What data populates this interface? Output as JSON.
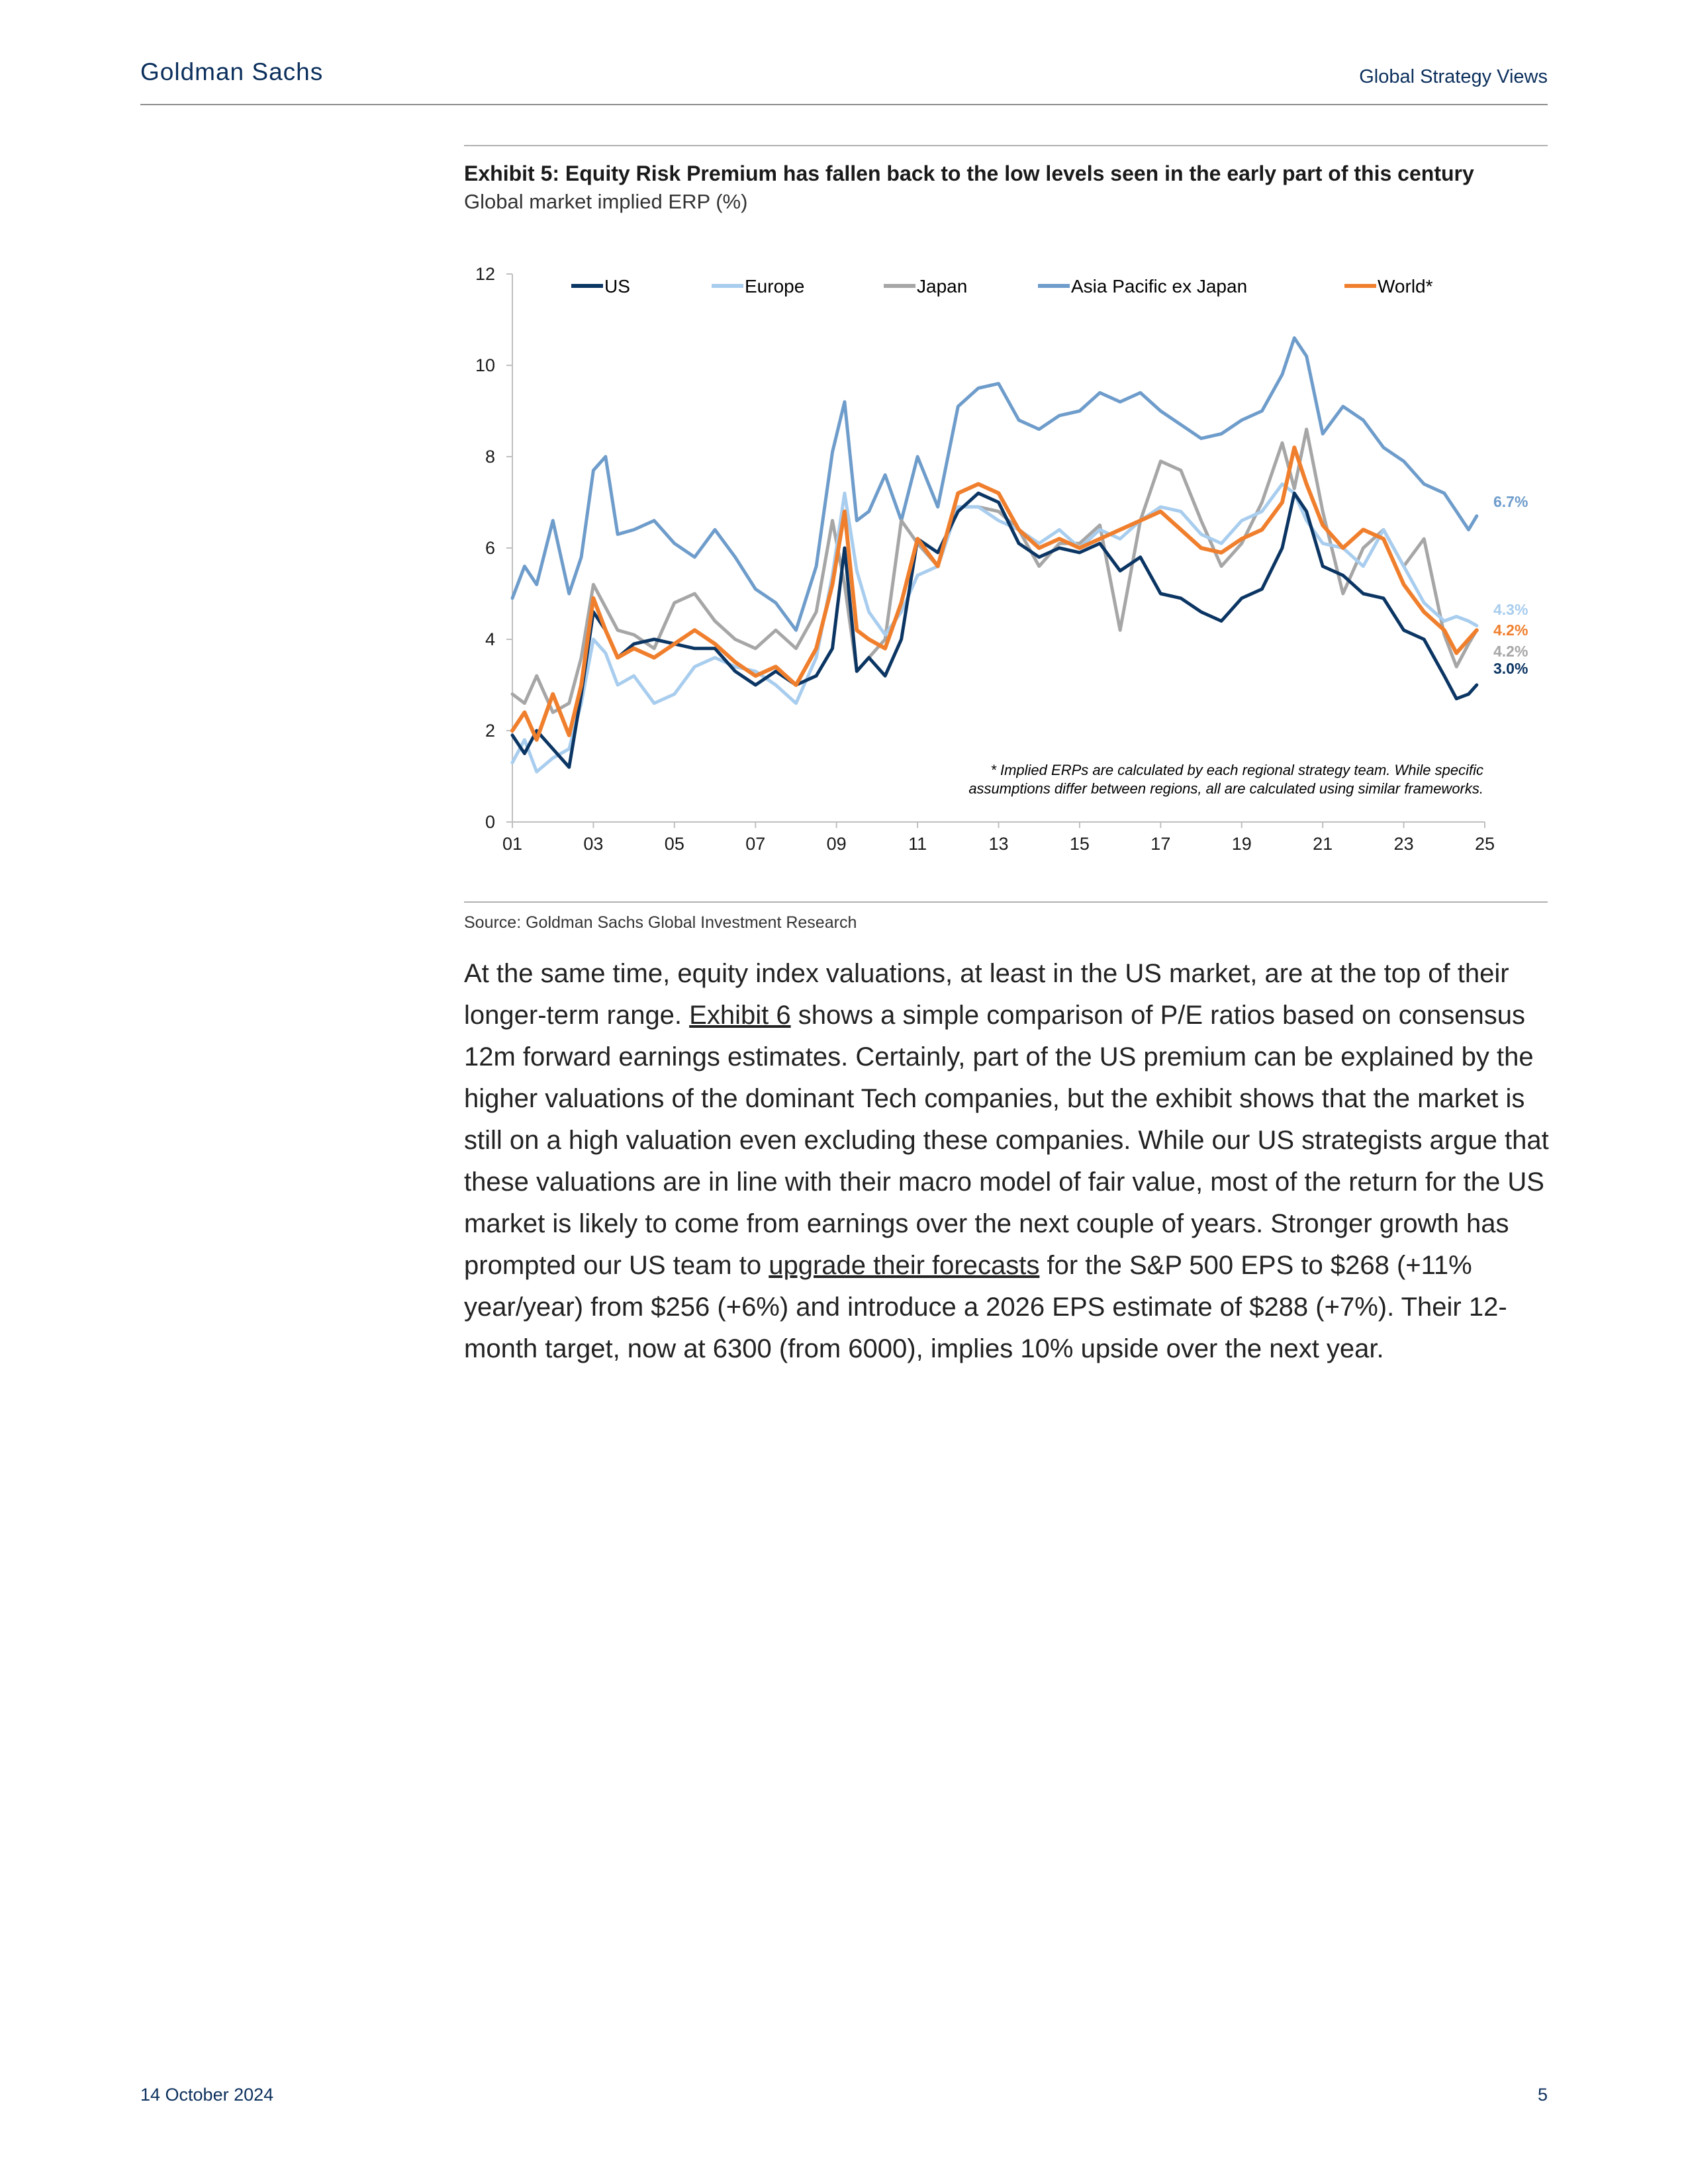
{
  "header": {
    "brand": "Goldman Sachs",
    "publication": "Global Strategy Views"
  },
  "exhibit": {
    "title": "Exhibit 5: Equity Risk Premium has fallen back to the low levels seen in the early part of this century",
    "subtitle": "Global market implied ERP (%)",
    "source": "Source: Goldman Sachs Global Investment Research"
  },
  "chart_data": {
    "type": "line",
    "ylim": [
      0,
      12
    ],
    "xlim": [
      2001,
      2025
    ],
    "y_ticks": [
      0,
      2,
      4,
      6,
      8,
      10,
      12
    ],
    "x_ticks": [
      {
        "value": 2001,
        "label": "01"
      },
      {
        "value": 2003,
        "label": "03"
      },
      {
        "value": 2005,
        "label": "05"
      },
      {
        "value": 2007,
        "label": "07"
      },
      {
        "value": 2009,
        "label": "09"
      },
      {
        "value": 2011,
        "label": "11"
      },
      {
        "value": 2013,
        "label": "13"
      },
      {
        "value": 2015,
        "label": "15"
      },
      {
        "value": 2017,
        "label": "17"
      },
      {
        "value": 2019,
        "label": "19"
      },
      {
        "value": 2021,
        "label": "21"
      },
      {
        "value": 2023,
        "label": "23"
      },
      {
        "value": 2025,
        "label": "25"
      }
    ],
    "grid": false,
    "legend_position": "top",
    "note_line1": "* Implied ERPs are calculated by each regional strategy team. While specific",
    "note_line2": "assumptions differ between regions, all are calculated using similar frameworks.",
    "series": [
      {
        "name": "US",
        "color": "#0b3563",
        "end_label": "3.0%",
        "x": [
          2001.0,
          2001.3,
          2001.6,
          2002.0,
          2002.4,
          2002.7,
          2003.0,
          2003.3,
          2003.6,
          2004.0,
          2004.5,
          2005.0,
          2005.5,
          2006.0,
          2006.5,
          2007.0,
          2007.5,
          2008.0,
          2008.5,
          2008.9,
          2009.2,
          2009.5,
          2009.8,
          2010.2,
          2010.6,
          2011.0,
          2011.5,
          2012.0,
          2012.5,
          2013.0,
          2013.5,
          2014.0,
          2014.5,
          2015.0,
          2015.5,
          2016.0,
          2016.5,
          2017.0,
          2017.5,
          2018.0,
          2018.5,
          2019.0,
          2019.5,
          2020.0,
          2020.3,
          2020.6,
          2021.0,
          2021.5,
          2022.0,
          2022.5,
          2023.0,
          2023.5,
          2024.0,
          2024.3,
          2024.6,
          2024.8
        ],
        "y": [
          1.9,
          1.5,
          2.0,
          1.6,
          1.2,
          2.8,
          4.6,
          4.2,
          3.6,
          3.9,
          4.0,
          3.9,
          3.8,
          3.8,
          3.3,
          3.0,
          3.3,
          3.0,
          3.2,
          3.8,
          6.0,
          3.3,
          3.6,
          3.2,
          4.0,
          6.2,
          5.9,
          6.8,
          7.2,
          7.0,
          6.1,
          5.8,
          6.0,
          5.9,
          6.1,
          5.5,
          5.8,
          5.0,
          4.9,
          4.6,
          4.4,
          4.9,
          5.1,
          6.0,
          7.2,
          6.8,
          5.6,
          5.4,
          5.0,
          4.9,
          4.2,
          4.0,
          3.2,
          2.7,
          2.8,
          3.0
        ]
      },
      {
        "name": "Europe",
        "color": "#a8cdee",
        "end_label": "4.3%",
        "x": [
          2001.0,
          2001.3,
          2001.6,
          2002.0,
          2002.4,
          2002.7,
          2003.0,
          2003.3,
          2003.6,
          2004.0,
          2004.5,
          2005.0,
          2005.5,
          2006.0,
          2006.5,
          2007.0,
          2007.5,
          2008.0,
          2008.5,
          2008.9,
          2009.2,
          2009.5,
          2009.8,
          2010.2,
          2010.6,
          2011.0,
          2011.5,
          2012.0,
          2012.5,
          2013.0,
          2013.5,
          2014.0,
          2014.5,
          2015.0,
          2015.5,
          2016.0,
          2016.5,
          2017.0,
          2017.5,
          2018.0,
          2018.5,
          2019.0,
          2019.5,
          2020.0,
          2020.3,
          2020.6,
          2021.0,
          2021.5,
          2022.0,
          2022.5,
          2023.0,
          2023.5,
          2024.0,
          2024.3,
          2024.6,
          2024.8
        ],
        "y": [
          1.3,
          1.8,
          1.1,
          1.4,
          1.6,
          2.6,
          4.0,
          3.7,
          3.0,
          3.2,
          2.6,
          2.8,
          3.4,
          3.6,
          3.4,
          3.3,
          3.0,
          2.6,
          3.6,
          5.4,
          7.2,
          5.5,
          4.6,
          4.1,
          4.6,
          5.4,
          5.6,
          6.9,
          6.9,
          6.6,
          6.4,
          6.1,
          6.4,
          6.0,
          6.4,
          6.2,
          6.6,
          6.9,
          6.8,
          6.3,
          6.1,
          6.6,
          6.8,
          7.4,
          7.2,
          6.6,
          6.1,
          6.0,
          5.6,
          6.4,
          5.6,
          4.8,
          4.4,
          4.5,
          4.4,
          4.3
        ]
      },
      {
        "name": "Japan",
        "color": "#a6a6a6",
        "end_label": "4.2%",
        "x": [
          2001.0,
          2001.3,
          2001.6,
          2002.0,
          2002.4,
          2002.7,
          2003.0,
          2003.3,
          2003.6,
          2004.0,
          2004.5,
          2005.0,
          2005.5,
          2006.0,
          2006.5,
          2007.0,
          2007.5,
          2008.0,
          2008.5,
          2008.9,
          2009.2,
          2009.5,
          2009.8,
          2010.2,
          2010.6,
          2011.0,
          2011.5,
          2012.0,
          2012.5,
          2013.0,
          2013.5,
          2014.0,
          2014.5,
          2015.0,
          2015.5,
          2016.0,
          2016.5,
          2017.0,
          2017.5,
          2018.0,
          2018.5,
          2019.0,
          2019.5,
          2020.0,
          2020.3,
          2020.6,
          2021.0,
          2021.5,
          2022.0,
          2022.5,
          2023.0,
          2023.5,
          2024.0,
          2024.3,
          2024.6,
          2024.8
        ],
        "y": [
          2.8,
          2.6,
          3.2,
          2.4,
          2.6,
          3.6,
          5.2,
          4.7,
          4.2,
          4.1,
          3.8,
          4.8,
          5.0,
          4.4,
          4.0,
          3.8,
          4.2,
          3.8,
          4.6,
          6.6,
          5.2,
          3.3,
          3.6,
          4.0,
          6.6,
          6.1,
          5.6,
          6.9,
          6.9,
          6.8,
          6.4,
          5.6,
          6.1,
          6.1,
          6.5,
          4.2,
          6.6,
          7.9,
          7.7,
          6.6,
          5.6,
          6.1,
          7.0,
          8.3,
          7.3,
          8.6,
          6.8,
          5.0,
          6.0,
          6.4,
          5.6,
          6.2,
          4.1,
          3.4,
          3.9,
          4.2
        ]
      },
      {
        "name": "Asia Pacific ex Japan",
        "color": "#6e9ccb",
        "end_label": "6.7%",
        "x": [
          2001.0,
          2001.3,
          2001.6,
          2002.0,
          2002.4,
          2002.7,
          2003.0,
          2003.3,
          2003.6,
          2004.0,
          2004.5,
          2005.0,
          2005.5,
          2006.0,
          2006.5,
          2007.0,
          2007.5,
          2008.0,
          2008.5,
          2008.9,
          2009.2,
          2009.5,
          2009.8,
          2010.2,
          2010.6,
          2011.0,
          2011.5,
          2012.0,
          2012.5,
          2013.0,
          2013.5,
          2014.0,
          2014.5,
          2015.0,
          2015.5,
          2016.0,
          2016.5,
          2017.0,
          2017.5,
          2018.0,
          2018.5,
          2019.0,
          2019.5,
          2020.0,
          2020.3,
          2020.6,
          2021.0,
          2021.5,
          2022.0,
          2022.5,
          2023.0,
          2023.5,
          2024.0,
          2024.3,
          2024.6,
          2024.8
        ],
        "y": [
          4.9,
          5.6,
          5.2,
          6.6,
          5.0,
          5.8,
          7.7,
          8.0,
          6.3,
          6.4,
          6.6,
          6.1,
          5.8,
          6.4,
          5.8,
          5.1,
          4.8,
          4.2,
          5.6,
          8.1,
          9.2,
          6.6,
          6.8,
          7.6,
          6.6,
          8.0,
          6.9,
          9.1,
          9.5,
          9.6,
          8.8,
          8.6,
          8.9,
          9.0,
          9.4,
          9.2,
          9.4,
          9.0,
          8.7,
          8.4,
          8.5,
          8.8,
          9.0,
          9.8,
          10.6,
          10.2,
          8.5,
          9.1,
          8.8,
          8.2,
          7.9,
          7.4,
          7.2,
          6.8,
          6.4,
          6.7
        ]
      },
      {
        "name": "World*",
        "color": "#f07f2d",
        "end_label": "4.2%",
        "x": [
          2001.0,
          2001.3,
          2001.6,
          2002.0,
          2002.4,
          2002.7,
          2003.0,
          2003.3,
          2003.6,
          2004.0,
          2004.5,
          2005.0,
          2005.5,
          2006.0,
          2006.5,
          2007.0,
          2007.5,
          2008.0,
          2008.5,
          2008.9,
          2009.2,
          2009.5,
          2009.8,
          2010.2,
          2010.6,
          2011.0,
          2011.5,
          2012.0,
          2012.5,
          2013.0,
          2013.5,
          2014.0,
          2014.5,
          2015.0,
          2015.5,
          2016.0,
          2016.5,
          2017.0,
          2017.5,
          2018.0,
          2018.5,
          2019.0,
          2019.5,
          2020.0,
          2020.3,
          2020.6,
          2021.0,
          2021.5,
          2022.0,
          2022.5,
          2023.0,
          2023.5,
          2024.0,
          2024.3,
          2024.6,
          2024.8
        ],
        "y": [
          2.0,
          2.4,
          1.8,
          2.8,
          1.9,
          3.0,
          4.9,
          4.2,
          3.6,
          3.8,
          3.6,
          3.9,
          4.2,
          3.9,
          3.5,
          3.2,
          3.4,
          3.0,
          3.8,
          5.2,
          6.8,
          4.2,
          4.0,
          3.8,
          4.8,
          6.2,
          5.6,
          7.2,
          7.4,
          7.2,
          6.4,
          6.0,
          6.2,
          6.0,
          6.2,
          6.4,
          6.6,
          6.8,
          6.4,
          6.0,
          5.9,
          6.2,
          6.4,
          7.0,
          8.2,
          7.4,
          6.5,
          6.0,
          6.4,
          6.2,
          5.2,
          4.6,
          4.2,
          3.7,
          4.0,
          4.2
        ]
      }
    ]
  },
  "body": {
    "p1": "At the same time, equity index valuations, at least in the US market, are at the top of their longer-term range. ",
    "link1": "Exhibit 6",
    "p2": " shows a simple comparison of P/E ratios based on consensus 12m forward earnings estimates. Certainly, part of the US premium can be explained by the higher valuations of the dominant Tech companies, but the exhibit shows that the market is still on a high valuation even excluding these companies. While our US strategists argue that these valuations are in line with their macro model of fair value, most of the return for the US market is likely to come from earnings over the next couple of years. Stronger growth has prompted our US team to ",
    "link2": "upgrade their forecasts",
    "p3": " for the S&P 500 EPS to $268 (+11% year/year) from $256 (+6%) and introduce a 2026 EPS estimate of $288 (+7%). Their 12-month target, now at 6300 (from 6000), implies 10% upside over the next year."
  },
  "footer": {
    "date": "14 October 2024",
    "page": "5"
  }
}
